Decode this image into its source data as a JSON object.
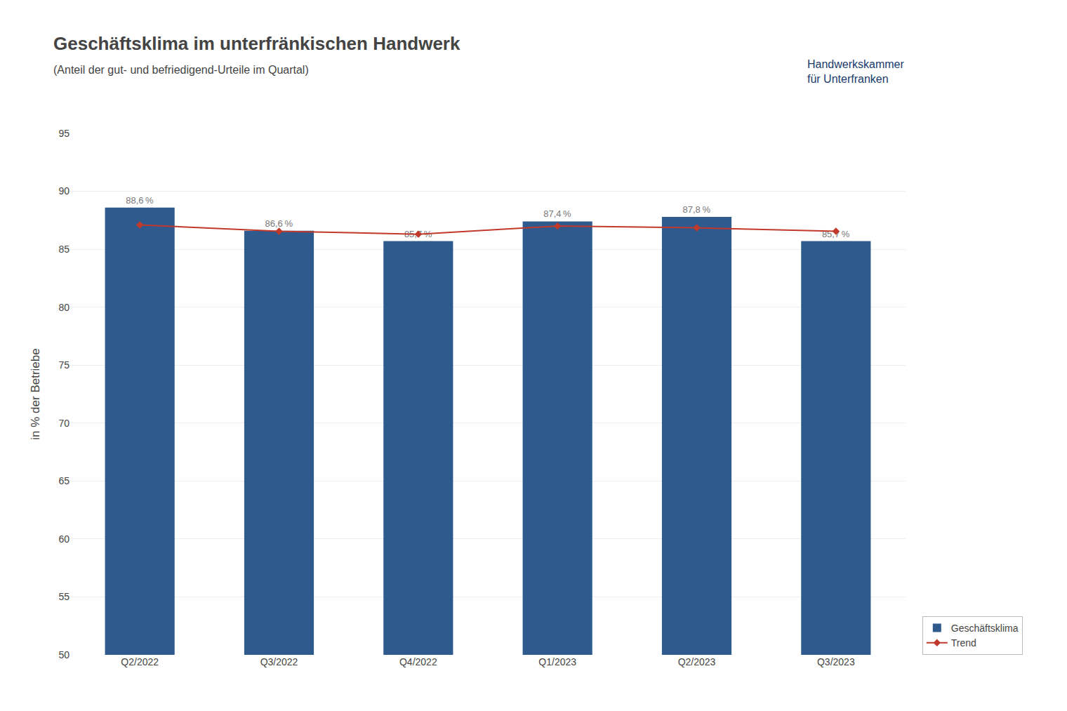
{
  "chart_data": {
    "type": "bar",
    "title": "Geschäftsklima im unterfränkischen Handwerk",
    "subtitle": "(Anteil der gut- und befriedigend-Urteile im Quartal)",
    "ylabel": "in % der Betriebe",
    "annotations": [
      "Handwerkskammer\nfür Unterfranken"
    ],
    "categories": [
      "Q2/2022",
      "Q3/2022",
      "Q4/2022",
      "Q1/2023",
      "Q2/2023",
      "Q3/2023"
    ],
    "series": [
      {
        "name": "Geschäftsklima",
        "type": "bar",
        "color": "#2E5A8E",
        "values": [
          88.6,
          86.6,
          85.7,
          87.4,
          87.8,
          85.7
        ],
        "value_labels": [
          "88,6 %",
          "86,6 %",
          "85,7 %",
          "87,4 %",
          "87,8 %",
          "85,7 %"
        ]
      },
      {
        "name": "Trend",
        "type": "line",
        "color": "#C0392B",
        "marker": "diamond",
        "values": [
          87.1,
          86.55,
          86.3,
          87.0,
          86.85,
          86.55
        ]
      }
    ],
    "data_labels": true,
    "ylim": [
      50,
      95
    ],
    "yticks": [
      50,
      55,
      60,
      65,
      70,
      75,
      80,
      85,
      90,
      95
    ],
    "grid": true,
    "legend": "lower right"
  }
}
